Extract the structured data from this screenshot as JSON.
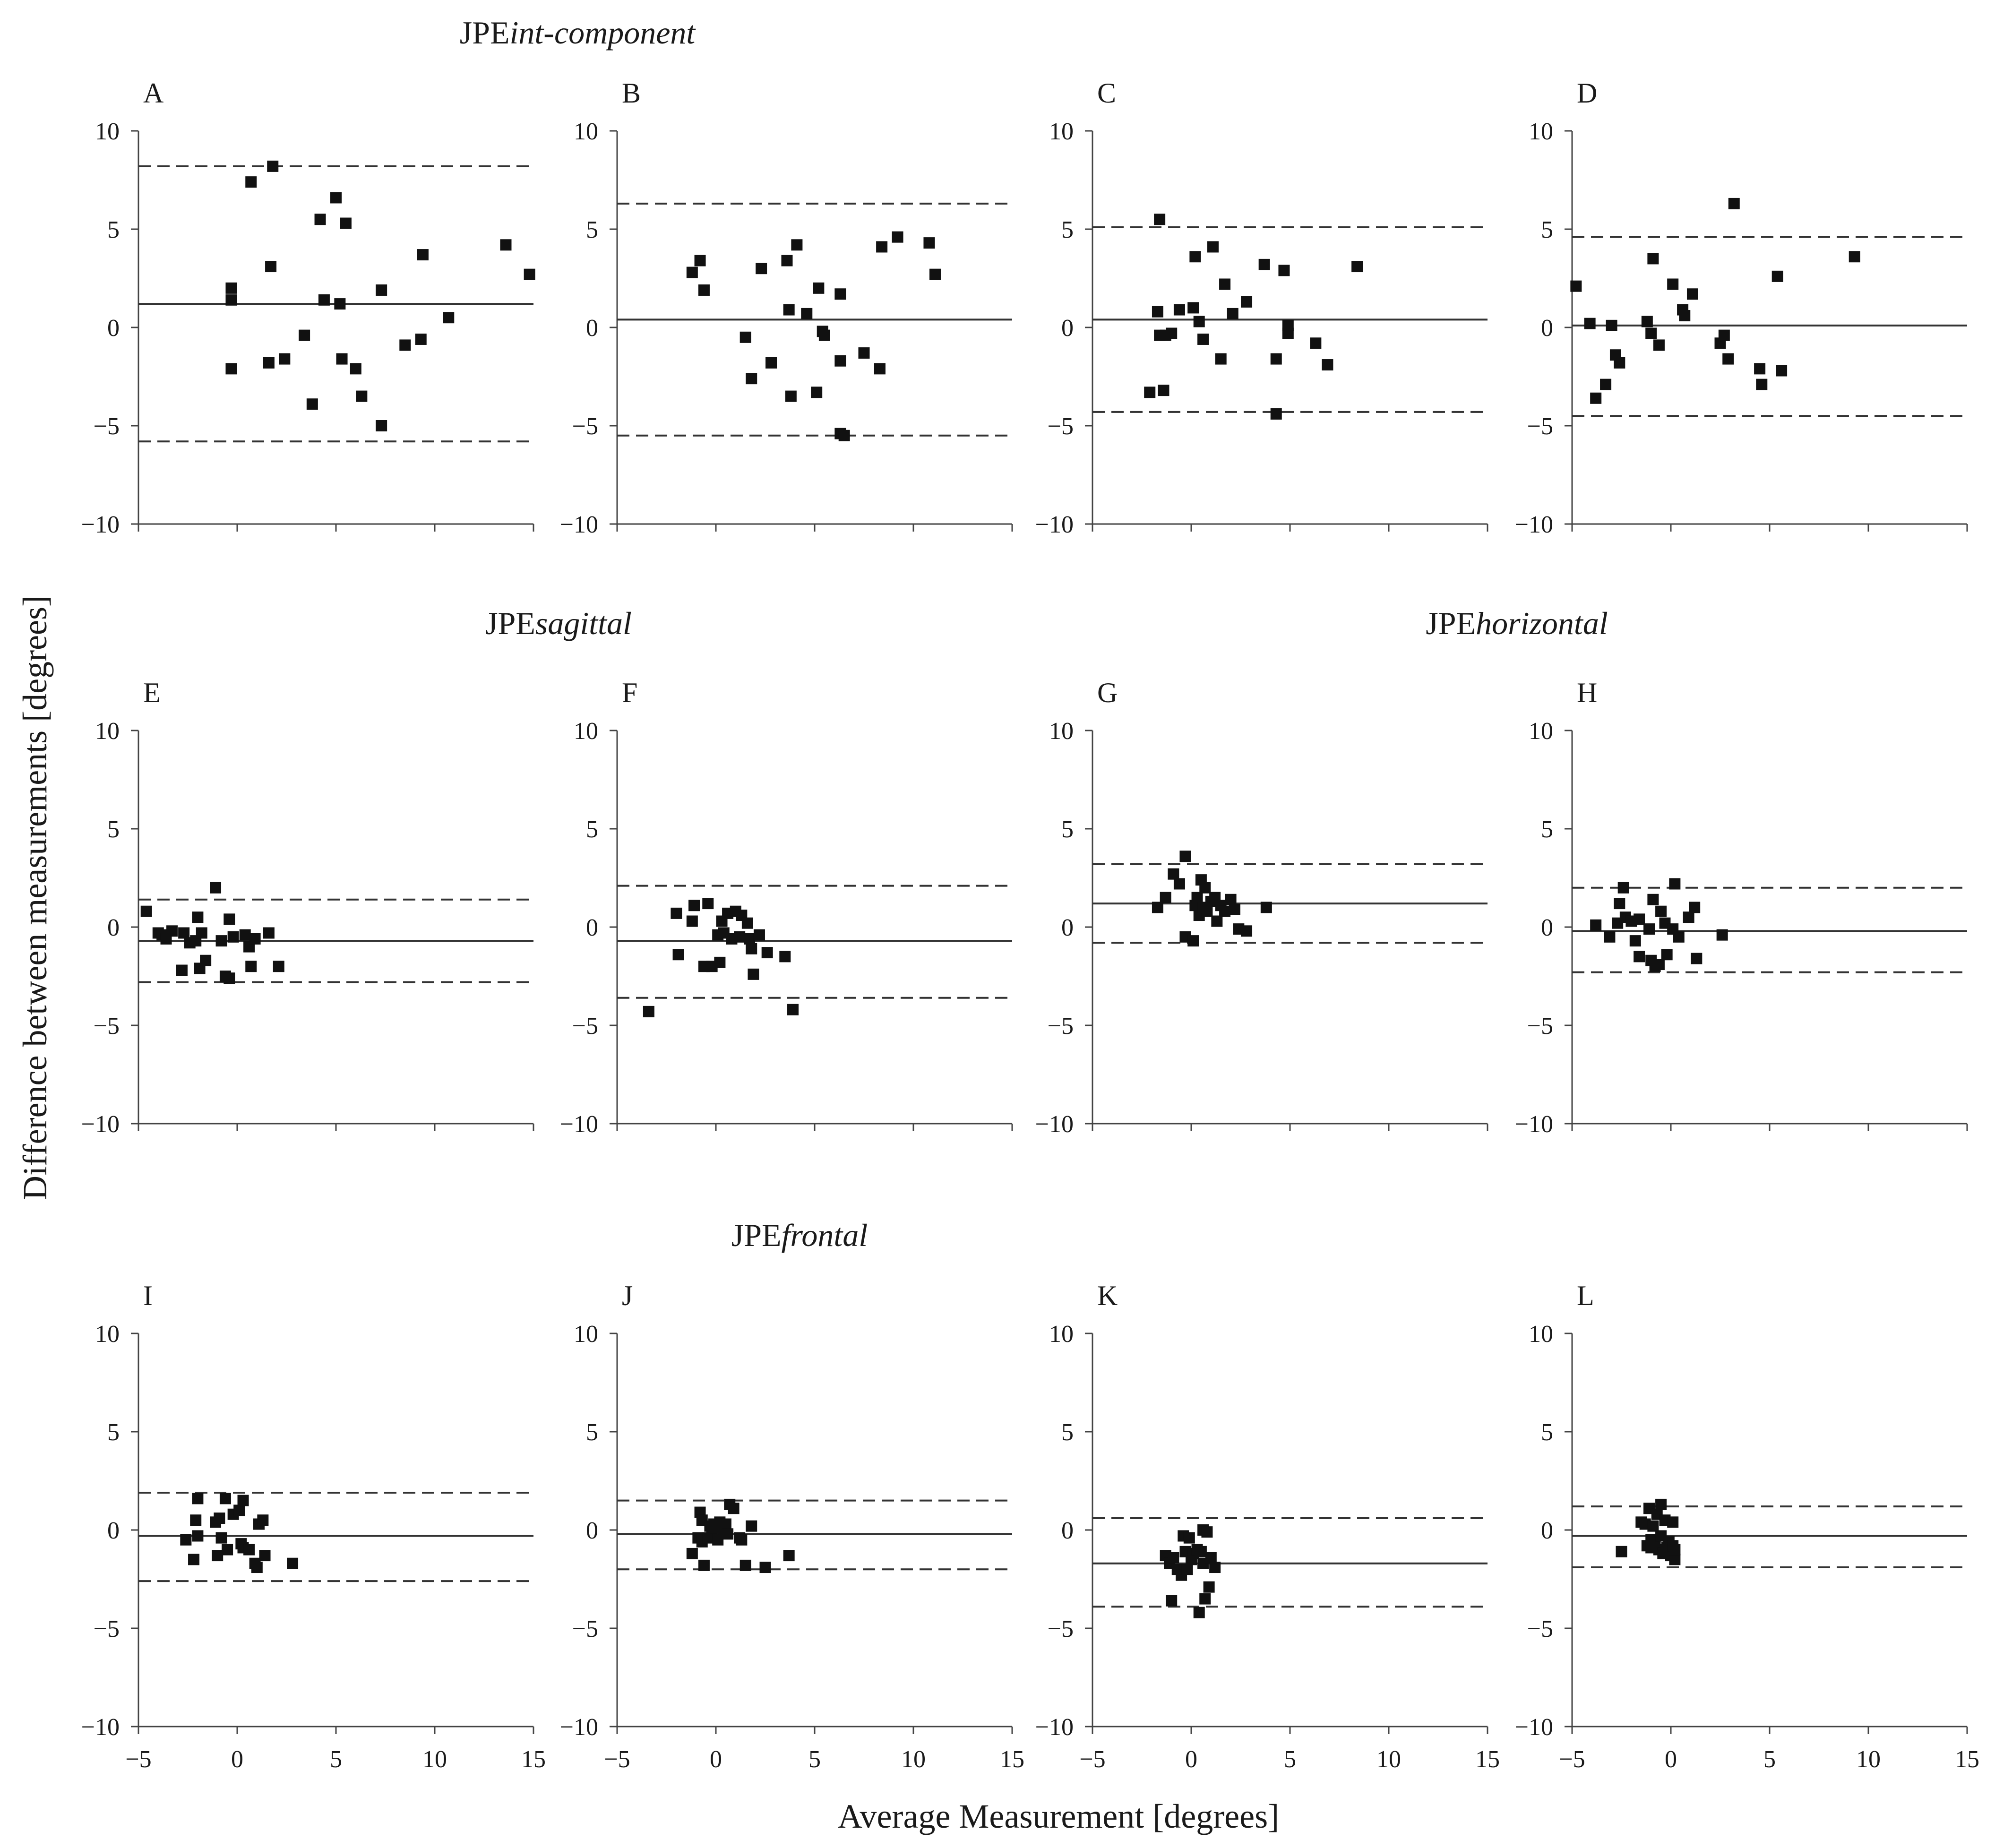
{
  "figure": {
    "ylabel": "Difference between measurements [degrees]",
    "xlabel": "Average Measurement [degrees]",
    "group_titles": [
      {
        "prefix": "JPE",
        "italic": "int-component"
      },
      {
        "prefix": "JPE",
        "italic": "sagittal"
      },
      {
        "prefix": "JPE",
        "italic": "horizontal"
      },
      {
        "prefix": "JPE",
        "italic": "frontal"
      }
    ],
    "x_ticks": [
      "−5",
      "0",
      "5",
      "10",
      "15"
    ],
    "y_ticks": [
      "10",
      "5",
      "0",
      "−5",
      "−10"
    ]
  },
  "chart_data": [
    {
      "panel": "A",
      "type": "scatter",
      "group": "JPEint-component",
      "xlim": [
        -5,
        15
      ],
      "ylim": [
        -10,
        10
      ],
      "mean": 1.2,
      "upper_loa": 8.2,
      "lower_loa": -5.8,
      "points": [
        [
          -0.3,
          2.0
        ],
        [
          -0.3,
          1.4
        ],
        [
          -0.3,
          -2.1
        ],
        [
          0.7,
          7.4
        ],
        [
          1.6,
          -1.8
        ],
        [
          1.7,
          3.1
        ],
        [
          1.8,
          8.2
        ],
        [
          2.4,
          -1.6
        ],
        [
          3.4,
          -0.4
        ],
        [
          3.8,
          -3.9
        ],
        [
          4.2,
          5.5
        ],
        [
          4.4,
          1.4
        ],
        [
          5.0,
          6.6
        ],
        [
          5.2,
          1.2
        ],
        [
          5.3,
          -1.6
        ],
        [
          5.5,
          5.3
        ],
        [
          6.0,
          -2.1
        ],
        [
          6.3,
          -3.5
        ],
        [
          7.3,
          1.9
        ],
        [
          7.3,
          -5.0
        ],
        [
          8.5,
          -0.9
        ],
        [
          9.3,
          -0.6
        ],
        [
          9.4,
          3.7
        ],
        [
          10.7,
          0.5
        ],
        [
          13.6,
          4.2
        ],
        [
          14.8,
          2.7
        ]
      ]
    },
    {
      "panel": "B",
      "type": "scatter",
      "group": "JPEint-component",
      "xlim": [
        -5,
        15
      ],
      "ylim": [
        -10,
        10
      ],
      "mean": 0.4,
      "upper_loa": 6.3,
      "lower_loa": -5.5,
      "points": [
        [
          -1.2,
          2.8
        ],
        [
          -0.8,
          3.4
        ],
        [
          -0.6,
          1.9
        ],
        [
          1.5,
          -0.5
        ],
        [
          1.8,
          -2.6
        ],
        [
          2.3,
          3.0
        ],
        [
          2.8,
          -1.8
        ],
        [
          3.6,
          3.4
        ],
        [
          3.7,
          0.9
        ],
        [
          4.1,
          4.2
        ],
        [
          4.6,
          0.7
        ],
        [
          5.1,
          -3.3
        ],
        [
          5.2,
          2.0
        ],
        [
          5.4,
          -0.2
        ],
        [
          5.5,
          -0.4
        ],
        [
          6.3,
          -1.7
        ],
        [
          6.3,
          1.7
        ],
        [
          6.3,
          -5.4
        ],
        [
          6.5,
          -5.5
        ],
        [
          7.5,
          -1.3
        ],
        [
          8.3,
          -2.1
        ],
        [
          8.4,
          4.1
        ],
        [
          9.2,
          4.6
        ],
        [
          10.8,
          4.3
        ],
        [
          11.1,
          2.7
        ],
        [
          3.8,
          -3.5
        ]
      ]
    },
    {
      "panel": "C",
      "type": "scatter",
      "group": "JPEint-component",
      "xlim": [
        -5,
        15
      ],
      "ylim": [
        -10,
        10
      ],
      "mean": 0.4,
      "upper_loa": 5.1,
      "lower_loa": -4.3,
      "points": [
        [
          -2.1,
          -3.3
        ],
        [
          -1.7,
          0.8
        ],
        [
          -1.6,
          -0.4
        ],
        [
          -1.6,
          5.5
        ],
        [
          -1.4,
          -3.2
        ],
        [
          -1.3,
          -0.4
        ],
        [
          -1.0,
          -0.3
        ],
        [
          -0.6,
          0.9
        ],
        [
          0.1,
          1.0
        ],
        [
          0.2,
          3.6
        ],
        [
          0.4,
          0.3
        ],
        [
          0.6,
          -0.6
        ],
        [
          1.1,
          4.1
        ],
        [
          1.5,
          -1.6
        ],
        [
          1.7,
          2.2
        ],
        [
          2.1,
          0.7
        ],
        [
          2.8,
          1.3
        ],
        [
          3.7,
          3.2
        ],
        [
          4.3,
          -1.6
        ],
        [
          4.3,
          -4.4
        ],
        [
          4.7,
          2.9
        ],
        [
          4.9,
          -0.3
        ],
        [
          4.9,
          0.1
        ],
        [
          6.3,
          -0.8
        ],
        [
          6.9,
          -1.9
        ],
        [
          8.4,
          3.1
        ]
      ]
    },
    {
      "panel": "D",
      "type": "scatter",
      "group": "JPEint-component",
      "xlim": [
        -5,
        15
      ],
      "ylim": [
        -10,
        10
      ],
      "mean": 0.1,
      "upper_loa": 4.6,
      "lower_loa": -4.5,
      "points": [
        [
          -4.8,
          2.1
        ],
        [
          -4.1,
          0.2
        ],
        [
          -3.8,
          -3.6
        ],
        [
          -3.3,
          -2.9
        ],
        [
          -3.0,
          0.1
        ],
        [
          -2.8,
          -1.4
        ],
        [
          -2.6,
          -1.8
        ],
        [
          -1.2,
          0.3
        ],
        [
          -1.0,
          -0.3
        ],
        [
          -0.9,
          3.5
        ],
        [
          -0.6,
          -0.9
        ],
        [
          0.1,
          2.2
        ],
        [
          0.6,
          0.9
        ],
        [
          0.7,
          0.6
        ],
        [
          1.1,
          1.7
        ],
        [
          2.5,
          -0.8
        ],
        [
          2.7,
          -0.4
        ],
        [
          2.9,
          -1.6
        ],
        [
          3.2,
          6.3
        ],
        [
          4.5,
          -2.1
        ],
        [
          4.6,
          -2.9
        ],
        [
          5.4,
          2.6
        ],
        [
          5.6,
          -2.2
        ],
        [
          9.3,
          3.6
        ]
      ]
    },
    {
      "panel": "E",
      "type": "scatter",
      "group": "JPEsagittal",
      "xlim": [
        -5,
        15
      ],
      "ylim": [
        -10,
        10
      ],
      "mean": -0.7,
      "upper_loa": 1.4,
      "lower_loa": -2.8,
      "points": [
        [
          -4.6,
          0.8
        ],
        [
          -4.0,
          -0.3
        ],
        [
          -3.8,
          -0.4
        ],
        [
          -3.6,
          -0.6
        ],
        [
          -3.3,
          -0.2
        ],
        [
          -2.8,
          -2.2
        ],
        [
          -2.7,
          -0.3
        ],
        [
          -2.4,
          -0.8
        ],
        [
          -2.1,
          -0.7
        ],
        [
          -2.0,
          0.5
        ],
        [
          -1.9,
          -2.1
        ],
        [
          -1.8,
          -0.3
        ],
        [
          -1.6,
          -1.7
        ],
        [
          -1.1,
          2.0
        ],
        [
          -0.8,
          -0.7
        ],
        [
          -0.6,
          -2.5
        ],
        [
          -0.4,
          -2.6
        ],
        [
          -0.4,
          0.4
        ],
        [
          -0.2,
          -0.5
        ],
        [
          0.4,
          -0.4
        ],
        [
          0.6,
          -1.0
        ],
        [
          0.7,
          -2.0
        ],
        [
          0.9,
          -0.6
        ],
        [
          1.6,
          -0.3
        ],
        [
          2.1,
          -2.0
        ]
      ]
    },
    {
      "panel": "F",
      "type": "scatter",
      "group": "JPEsagittal",
      "xlim": [
        -5,
        15
      ],
      "ylim": [
        -10,
        10
      ],
      "mean": -0.7,
      "upper_loa": 2.1,
      "lower_loa": -3.6,
      "points": [
        [
          -3.4,
          -4.3
        ],
        [
          -2.0,
          0.7
        ],
        [
          -1.9,
          -1.4
        ],
        [
          -1.2,
          0.3
        ],
        [
          -1.1,
          1.1
        ],
        [
          -0.6,
          -2.0
        ],
        [
          -0.4,
          1.2
        ],
        [
          -0.2,
          -2.0
        ],
        [
          0.1,
          -0.4
        ],
        [
          0.2,
          -1.8
        ],
        [
          0.3,
          0.3
        ],
        [
          0.4,
          -0.3
        ],
        [
          0.6,
          0.7
        ],
        [
          0.8,
          -0.6
        ],
        [
          1.0,
          0.8
        ],
        [
          1.2,
          -0.5
        ],
        [
          1.3,
          0.6
        ],
        [
          1.6,
          0.2
        ],
        [
          1.7,
          -0.6
        ],
        [
          1.8,
          -1.1
        ],
        [
          1.9,
          -2.4
        ],
        [
          2.2,
          -0.4
        ],
        [
          2.6,
          -1.3
        ],
        [
          3.5,
          -1.5
        ],
        [
          3.9,
          -4.2
        ]
      ]
    },
    {
      "panel": "G",
      "type": "scatter",
      "group": "JPEhorizontal",
      "xlim": [
        -5,
        15
      ],
      "ylim": [
        -10,
        10
      ],
      "mean": 1.2,
      "upper_loa": 3.2,
      "lower_loa": -0.8,
      "points": [
        [
          -1.7,
          1.0
        ],
        [
          -1.3,
          1.5
        ],
        [
          -0.9,
          2.7
        ],
        [
          -0.6,
          2.2
        ],
        [
          -0.3,
          -0.5
        ],
        [
          -0.3,
          3.6
        ],
        [
          0.1,
          -0.7
        ],
        [
          0.2,
          1.1
        ],
        [
          0.3,
          1.5
        ],
        [
          0.4,
          0.6
        ],
        [
          0.5,
          2.4
        ],
        [
          0.7,
          2.0
        ],
        [
          0.8,
          0.8
        ],
        [
          1.0,
          1.3
        ],
        [
          1.2,
          1.5
        ],
        [
          1.3,
          0.3
        ],
        [
          1.5,
          1.1
        ],
        [
          1.7,
          0.8
        ],
        [
          2.0,
          1.4
        ],
        [
          2.2,
          0.9
        ],
        [
          2.4,
          -0.1
        ],
        [
          2.8,
          -0.2
        ],
        [
          3.8,
          1.0
        ],
        [
          0.6,
          1.0
        ]
      ]
    },
    {
      "panel": "H",
      "type": "scatter",
      "group": "JPEhorizontal",
      "xlim": [
        -5,
        15
      ],
      "ylim": [
        -10,
        10
      ],
      "mean": -0.2,
      "upper_loa": 2.0,
      "lower_loa": -2.3,
      "points": [
        [
          -3.8,
          0.1
        ],
        [
          -3.1,
          -0.5
        ],
        [
          -2.7,
          0.2
        ],
        [
          -2.6,
          1.2
        ],
        [
          -2.4,
          2.0
        ],
        [
          -2.3,
          0.5
        ],
        [
          -2.0,
          0.3
        ],
        [
          -1.8,
          -0.7
        ],
        [
          -1.6,
          -1.5
        ],
        [
          -1.6,
          0.4
        ],
        [
          -1.1,
          -0.1
        ],
        [
          -1.0,
          -1.7
        ],
        [
          -0.9,
          1.4
        ],
        [
          -0.8,
          -2.0
        ],
        [
          -0.6,
          -1.9
        ],
        [
          -0.5,
          0.8
        ],
        [
          -0.3,
          0.2
        ],
        [
          -0.2,
          -1.4
        ],
        [
          0.1,
          -0.1
        ],
        [
          0.2,
          2.2
        ],
        [
          0.4,
          -0.5
        ],
        [
          0.9,
          0.5
        ],
        [
          1.2,
          1.0
        ],
        [
          1.3,
          -1.6
        ],
        [
          2.6,
          -0.4
        ]
      ]
    },
    {
      "panel": "I",
      "type": "scatter",
      "group": "JPEfrontal",
      "xlim": [
        -5,
        15
      ],
      "ylim": [
        -10,
        10
      ],
      "mean": -0.3,
      "upper_loa": 1.9,
      "lower_loa": -2.6,
      "points": [
        [
          -2.6,
          -0.5
        ],
        [
          -2.2,
          -1.5
        ],
        [
          -2.1,
          0.5
        ],
        [
          -2.0,
          1.6
        ],
        [
          -2.0,
          -0.3
        ],
        [
          -1.1,
          0.4
        ],
        [
          -1.0,
          -1.3
        ],
        [
          -0.9,
          0.6
        ],
        [
          -0.8,
          -0.4
        ],
        [
          -0.6,
          1.6
        ],
        [
          -0.5,
          -1.0
        ],
        [
          -0.2,
          0.8
        ],
        [
          0.1,
          1.0
        ],
        [
          0.2,
          -0.7
        ],
        [
          0.3,
          1.5
        ],
        [
          0.3,
          -0.9
        ],
        [
          0.6,
          -1.0
        ],
        [
          0.9,
          -1.7
        ],
        [
          1.0,
          -1.9
        ],
        [
          1.1,
          0.3
        ],
        [
          1.3,
          0.5
        ],
        [
          1.4,
          -1.3
        ],
        [
          2.8,
          -1.7
        ]
      ]
    },
    {
      "panel": "J",
      "type": "scatter",
      "group": "JPEfrontal",
      "xlim": [
        -5,
        15
      ],
      "ylim": [
        -10,
        10
      ],
      "mean": -0.2,
      "upper_loa": 1.5,
      "lower_loa": -2.0,
      "points": [
        [
          -1.2,
          -1.2
        ],
        [
          -0.9,
          -0.4
        ],
        [
          -0.8,
          0.9
        ],
        [
          -0.7,
          -0.6
        ],
        [
          -0.7,
          0.5
        ],
        [
          -0.6,
          -1.8
        ],
        [
          -0.4,
          -0.4
        ],
        [
          -0.3,
          0.2
        ],
        [
          -0.2,
          -0.3
        ],
        [
          -0.1,
          0.3
        ],
        [
          0.0,
          0.1
        ],
        [
          0.1,
          -0.5
        ],
        [
          0.2,
          0.4
        ],
        [
          0.4,
          0.0
        ],
        [
          0.5,
          0.3
        ],
        [
          0.6,
          -0.2
        ],
        [
          0.7,
          1.3
        ],
        [
          0.9,
          1.1
        ],
        [
          1.2,
          -0.4
        ],
        [
          1.3,
          -0.5
        ],
        [
          1.5,
          -1.8
        ],
        [
          1.8,
          0.2
        ],
        [
          2.5,
          -1.9
        ],
        [
          3.7,
          -1.3
        ]
      ]
    },
    {
      "panel": "K",
      "type": "scatter",
      "group": "JPEfrontal",
      "xlim": [
        -5,
        15
      ],
      "ylim": [
        -10,
        10
      ],
      "mean": -1.7,
      "upper_loa": 0.6,
      "lower_loa": -3.9,
      "points": [
        [
          -1.3,
          -1.3
        ],
        [
          -1.1,
          -1.7
        ],
        [
          -1.0,
          -3.6
        ],
        [
          -0.9,
          -1.4
        ],
        [
          -0.7,
          -2.0
        ],
        [
          -0.5,
          -2.3
        ],
        [
          -0.4,
          -0.3
        ],
        [
          -0.3,
          -1.1
        ],
        [
          -0.2,
          -2.0
        ],
        [
          -0.1,
          -0.4
        ],
        [
          0.0,
          -1.5
        ],
        [
          0.1,
          -1.2
        ],
        [
          0.3,
          -1.0
        ],
        [
          0.4,
          -4.2
        ],
        [
          0.5,
          -1.1
        ],
        [
          0.6,
          0.0
        ],
        [
          0.6,
          -1.7
        ],
        [
          0.7,
          -3.5
        ],
        [
          0.8,
          -0.1
        ],
        [
          0.9,
          -2.9
        ],
        [
          1.0,
          -1.4
        ],
        [
          1.2,
          -1.9
        ]
      ]
    },
    {
      "panel": "L",
      "type": "scatter",
      "group": "JPEfrontal",
      "xlim": [
        -5,
        15
      ],
      "ylim": [
        -10,
        10
      ],
      "mean": -0.3,
      "upper_loa": 1.2,
      "lower_loa": -1.9,
      "points": [
        [
          -2.5,
          -1.1
        ],
        [
          -1.5,
          0.4
        ],
        [
          -1.3,
          0.3
        ],
        [
          -1.2,
          -0.8
        ],
        [
          -1.1,
          1.1
        ],
        [
          -1.0,
          -0.5
        ],
        [
          -1.0,
          -0.9
        ],
        [
          -0.9,
          0.2
        ],
        [
          -0.8,
          -0.6
        ],
        [
          -0.7,
          0.8
        ],
        [
          -0.6,
          -1.0
        ],
        [
          -0.5,
          1.3
        ],
        [
          -0.5,
          -0.3
        ],
        [
          -0.4,
          -1.2
        ],
        [
          -0.3,
          0.5
        ],
        [
          -0.2,
          -0.9
        ],
        [
          -0.1,
          -1.1
        ],
        [
          -0.1,
          -0.6
        ],
        [
          0.0,
          -1.3
        ],
        [
          0.1,
          0.4
        ],
        [
          0.1,
          -0.8
        ],
        [
          0.2,
          -1.5
        ],
        [
          0.2,
          -1.0
        ]
      ]
    }
  ]
}
